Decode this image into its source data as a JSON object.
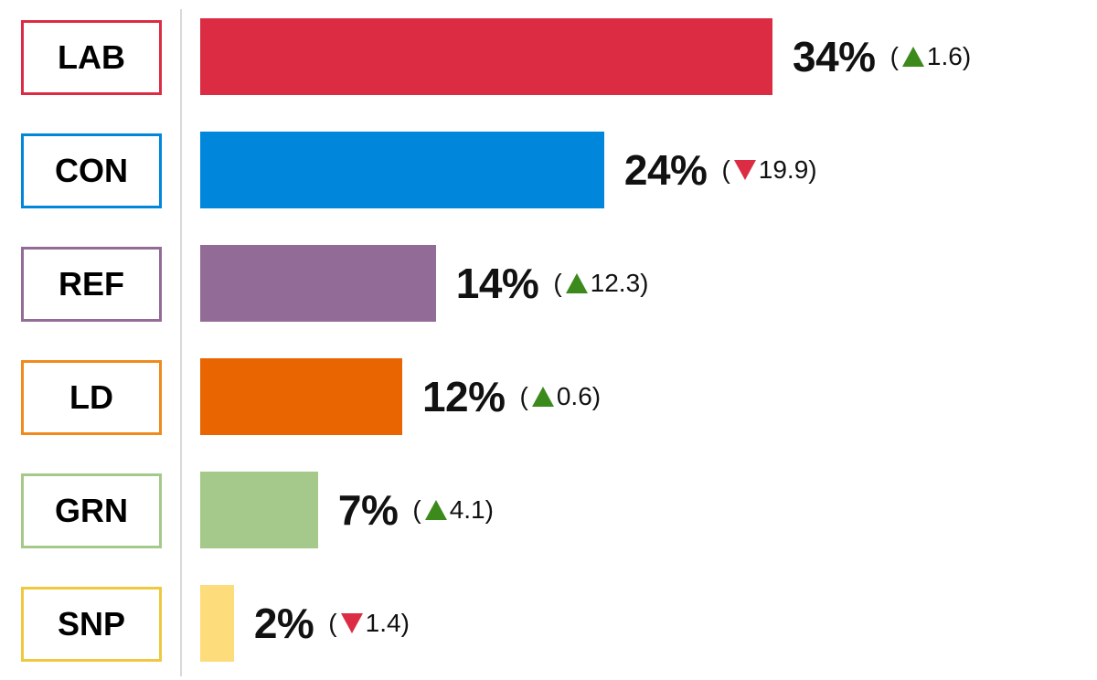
{
  "chart_data": {
    "type": "bar",
    "orientation": "horizontal",
    "categories": [
      "LAB",
      "CON",
      "REF",
      "LD",
      "GRN",
      "SNP"
    ],
    "values": [
      34,
      24,
      14,
      12,
      7,
      2
    ],
    "value_labels": [
      "34%",
      "24%",
      "14%",
      "12%",
      "7%",
      "2%"
    ],
    "changes": [
      {
        "direction": "up",
        "value": "1.6"
      },
      {
        "direction": "down",
        "value": "19.9"
      },
      {
        "direction": "up",
        "value": "12.3"
      },
      {
        "direction": "up",
        "value": "0.6"
      },
      {
        "direction": "up",
        "value": "4.1"
      },
      {
        "direction": "down",
        "value": "1.4"
      }
    ],
    "colors": [
      "#dc2c44",
      "#0087dc",
      "#926b96",
      "#e86502",
      "#a5c98a",
      "#fddc7c"
    ],
    "border_colors": [
      "#dc2c44",
      "#0087dc",
      "#926b96",
      "#f08a1c",
      "#a5c98a",
      "#f0c840"
    ],
    "arrow_colors": {
      "up": "#3d8a1c",
      "down": "#dc2c44"
    },
    "xlim": [
      0,
      34
    ],
    "grid": false,
    "legend": "none"
  }
}
